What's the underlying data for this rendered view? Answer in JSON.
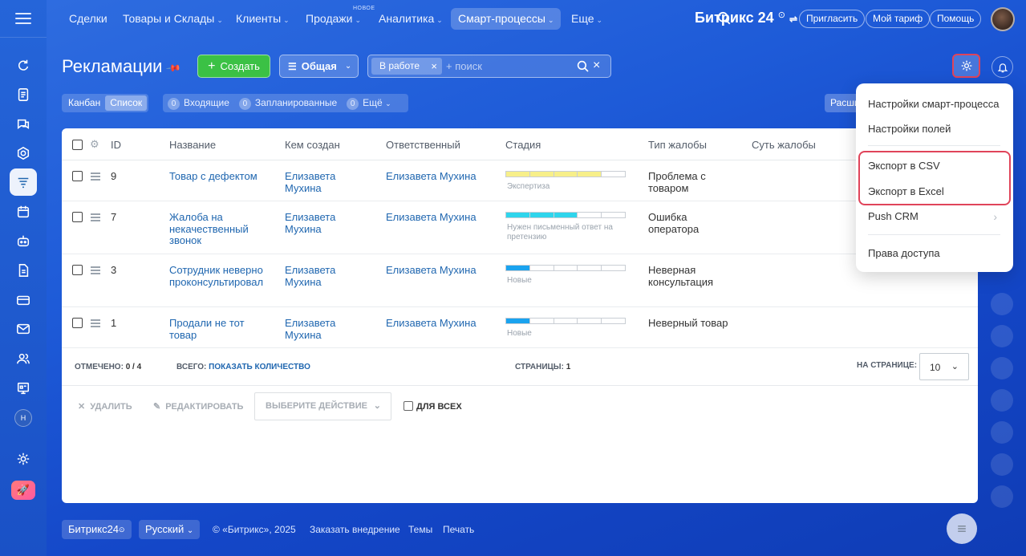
{
  "nav": {
    "items": [
      {
        "label": "Сделки",
        "chev": ""
      },
      {
        "label": "Товары и Склады",
        "chev": "⌄"
      },
      {
        "label": "Клиенты",
        "chev": "⌄"
      },
      {
        "label": "Продажи",
        "chev": "⌄"
      },
      {
        "label": "Аналитика",
        "chev": "⌄"
      },
      {
        "label": "Смарт-процессы",
        "chev": "⌄"
      },
      {
        "label": "Еще",
        "chev": "⌄"
      }
    ],
    "new_badge": "НОВОЕ",
    "brand": "Битрикс 24",
    "invite": "Пригласить",
    "tariff": "Мой тариф",
    "help": "Помощь"
  },
  "header": {
    "title": "Рекламации",
    "create": "Создать",
    "category": "Общая",
    "filter_chip": "В работе",
    "search_placeholder": "+ поиск"
  },
  "toolbar": {
    "views": [
      "Канбан",
      "Список"
    ],
    "counters": [
      {
        "count": "0",
        "label": "Входящие"
      },
      {
        "count": "0",
        "label": "Запланированные"
      },
      {
        "count": "0",
        "label": "Ещё"
      }
    ],
    "extra": "Расши"
  },
  "table": {
    "columns": [
      "ID",
      "Название",
      "Кем создан",
      "Ответственный",
      "Стадия",
      "Тип жалобы",
      "Суть жалобы"
    ],
    "rows": [
      {
        "id": "9",
        "name": "Товар с дефектом",
        "creator": "Елизавета Мухина",
        "responsible": "Елизавета Мухина",
        "stage": "Экспертиза",
        "type": "Проблема с товаром"
      },
      {
        "id": "7",
        "name": "Жалоба на некачественный звонок",
        "creator": "Елизавета Мухина",
        "responsible": "Елизавета Мухина",
        "stage": "Нужен письменный ответ на претензию",
        "type": "Ошибка оператора"
      },
      {
        "id": "3",
        "name": "Сотрудник неверно проконсультировал",
        "creator": "Елизавета Мухина",
        "responsible": "Елизавета Мухина",
        "stage": "Новые",
        "type": "Неверная консультация"
      },
      {
        "id": "1",
        "name": "Продали не тот товар",
        "creator": "Елизавета Мухина",
        "responsible": "Елизавета Мухина",
        "stage": "Новые",
        "type": "Неверный товар"
      }
    ]
  },
  "footer": {
    "checked_label": "Отмечено:",
    "checked_value": "0 / 4",
    "total_label": "Всего:",
    "total_link": "Показать количество",
    "pages_label": "Страницы:",
    "pages_value": "1",
    "per_page_label": "На странице:",
    "per_page_value": "10"
  },
  "actions": {
    "delete": "Удалить",
    "edit": "Редактировать",
    "select": "Выберите действие",
    "for_all": "Для всех"
  },
  "menu": {
    "items": [
      "Настройки смарт-процесса",
      "Настройки полей",
      "Экспорт в CSV",
      "Экспорт в Excel",
      "Push CRM",
      "Права доступа"
    ]
  },
  "bottom": {
    "brand": "Битрикс24",
    "language": "Русский",
    "copyright": "© «Битрикс», 2025",
    "order": "Заказать внедрение",
    "themes": "Темы",
    "print": "Печать"
  },
  "user": {
    "initial": "Н"
  },
  "colors": {
    "accent": "#2067b0",
    "create": "#3bc145",
    "highlight": "#e0445a",
    "stage_yellow": "#f7ef8a",
    "stage_cyan": "#2fd5ec",
    "stage_blue": "#1aa3ef"
  }
}
